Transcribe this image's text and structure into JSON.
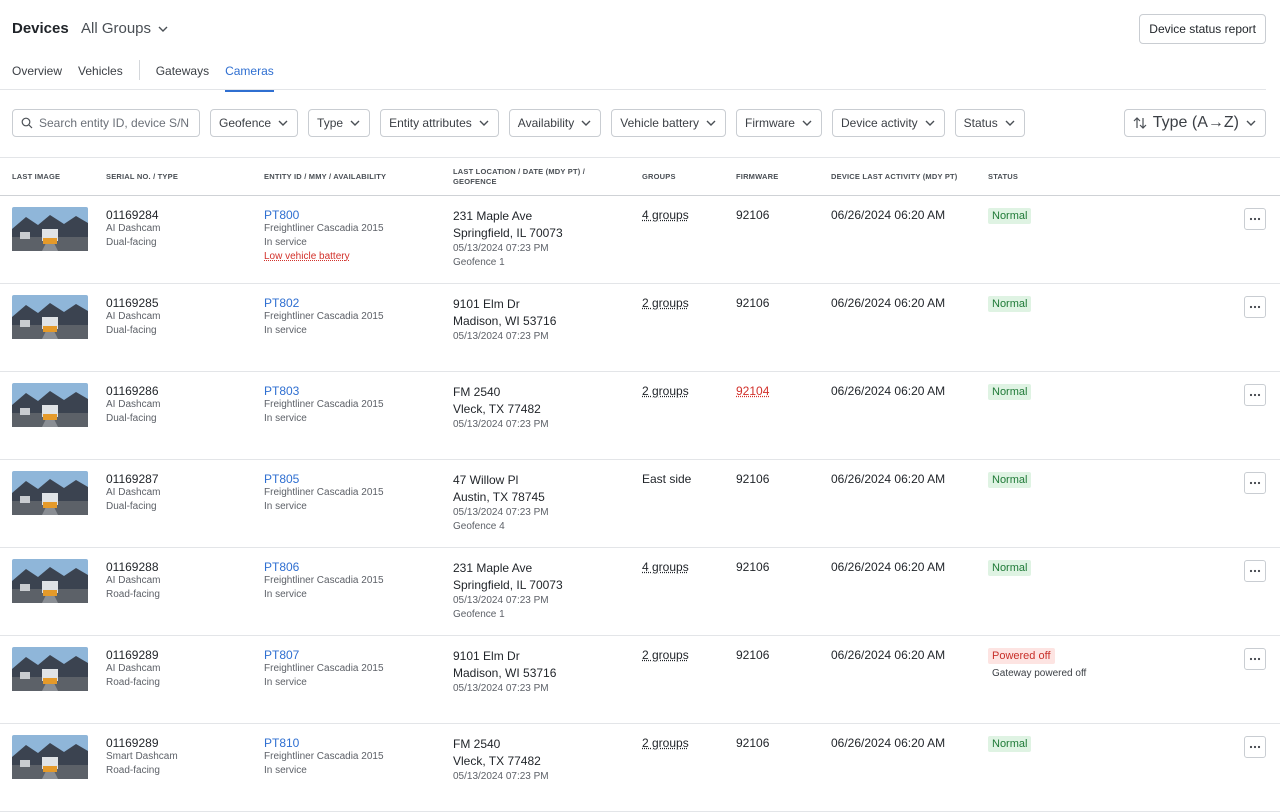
{
  "header": {
    "title": "Devices",
    "group_selector": "All Groups",
    "report_button": "Device status report"
  },
  "tabs": {
    "items": [
      "Overview",
      "Vehicles",
      "Gateways",
      "Cameras"
    ],
    "active": 3
  },
  "filters": {
    "search_placeholder": "Search entity ID, device S/N",
    "items": [
      "Geofence",
      "Type",
      "Entity attributes",
      "Availability",
      "Vehicle battery",
      "Firmware",
      "Device activity",
      "Status"
    ],
    "sort": "Type (A→Z)"
  },
  "table": {
    "columns": [
      "LAST IMAGE",
      "SERIAL NO. / TYPE",
      "ENTITY ID / MMY / AVAILABILITY",
      "LAST LOCATION / DATE (MDY PT) / GEOFENCE",
      "GROUPS",
      "FIRMWARE",
      "DEVICE LAST ACTIVITY (MDY PT)",
      "STATUS"
    ],
    "rows": [
      {
        "serial": "01169284",
        "device_type": "AI Dashcam",
        "facing": "Dual-facing",
        "entity_id": "PT800",
        "mmy": "Freightliner Cascadia 2015",
        "availability": "In service",
        "alert": "Low vehicle battery",
        "address": "231 Maple Ave",
        "city": "Springfield, IL 70073",
        "date": "05/13/2024 07:23 PM",
        "geofence": "Geofence 1",
        "groups": "4 groups",
        "groups_link": true,
        "firmware": "92106",
        "activity": "06/26/2024 06:20 AM",
        "status": "Normal",
        "status_tone": "ok"
      },
      {
        "serial": "01169285",
        "device_type": "AI Dashcam",
        "facing": "Dual-facing",
        "entity_id": "PT802",
        "mmy": "Freightliner Cascadia 2015",
        "availability": "In service",
        "address": "9101 Elm Dr",
        "city": "Madison, WI 53716",
        "date": "05/13/2024 07:23 PM",
        "groups": "2 groups",
        "groups_link": true,
        "firmware": "92106",
        "activity": "06/26/2024 06:20 AM",
        "status": "Normal",
        "status_tone": "ok"
      },
      {
        "serial": "01169286",
        "device_type": "AI Dashcam",
        "facing": "Dual-facing",
        "entity_id": "PT803",
        "mmy": "Freightliner Cascadia 2015",
        "availability": "In service",
        "address": "FM 2540",
        "city": "Vleck, TX 77482",
        "date": "05/13/2024 07:23 PM",
        "groups": "2 groups",
        "groups_link": true,
        "firmware": "92104",
        "firmware_warning": true,
        "activity": "06/26/2024 06:20 AM",
        "status": "Normal",
        "status_tone": "ok"
      },
      {
        "serial": "01169287",
        "device_type": "AI Dashcam",
        "facing": "Dual-facing",
        "entity_id": "PT805",
        "mmy": "Freightliner Cascadia 2015",
        "availability": "In service",
        "address": "47 Willow Pl",
        "city": "Austin, TX 78745",
        "date": "05/13/2024 07:23 PM",
        "geofence": "Geofence 4",
        "groups": "East side",
        "groups_link": false,
        "firmware": "92106",
        "activity": "06/26/2024 06:20 AM",
        "status": "Normal",
        "status_tone": "ok"
      },
      {
        "serial": "01169288",
        "device_type": "AI Dashcam",
        "facing": "Road-facing",
        "entity_id": "PT806",
        "mmy": "Freightliner Cascadia 2015",
        "availability": "In service",
        "address": "231 Maple Ave",
        "city": "Springfield, IL 70073",
        "date": "05/13/2024 07:23 PM",
        "geofence": "Geofence 1",
        "groups": "4 groups",
        "groups_link": true,
        "firmware": "92106",
        "activity": "06/26/2024 06:20 AM",
        "status": "Normal",
        "status_tone": "ok"
      },
      {
        "serial": "01169289",
        "device_type": "AI Dashcam",
        "facing": "Road-facing",
        "entity_id": "PT807",
        "mmy": "Freightliner Cascadia 2015",
        "availability": "In service",
        "address": "9101 Elm Dr",
        "city": "Madison, WI 53716",
        "date": "05/13/2024 07:23 PM",
        "groups": "2 groups",
        "groups_link": true,
        "firmware": "92106",
        "activity": "06/26/2024 06:20 AM",
        "status": "Powered off",
        "status_tone": "error",
        "status_note": "Gateway powered off"
      },
      {
        "serial": "01169289",
        "device_type": "Smart Dashcam",
        "facing": "Road-facing",
        "entity_id": "PT810",
        "mmy": "Freightliner Cascadia 2015",
        "availability": "In service",
        "address": "FM 2540",
        "city": "Vleck, TX 77482",
        "date": "05/13/2024 07:23 PM",
        "groups": "2 groups",
        "groups_link": true,
        "firmware": "92106",
        "activity": "06/26/2024 06:20 AM",
        "status": "Normal",
        "status_tone": "ok"
      }
    ]
  }
}
